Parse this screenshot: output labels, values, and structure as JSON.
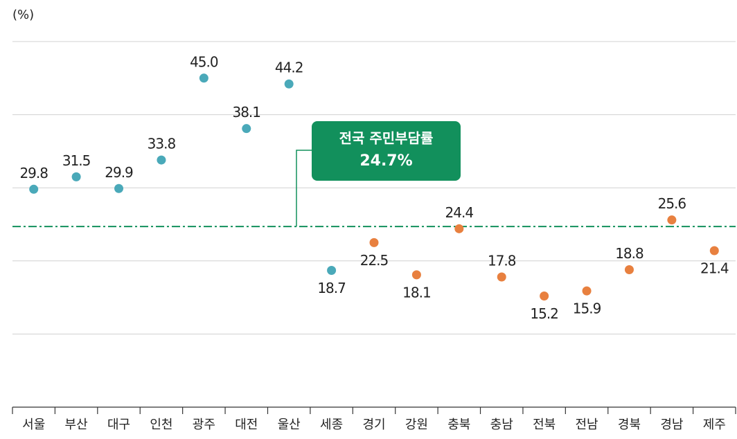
{
  "chart_data": {
    "type": "dot",
    "unit_label": "(%)",
    "categories": [
      "서울",
      "부산",
      "대구",
      "인천",
      "광주",
      "대전",
      "울산",
      "세종",
      "경기",
      "강원",
      "충북",
      "충남",
      "전북",
      "전남",
      "경북",
      "경남",
      "제주"
    ],
    "values": [
      29.8,
      31.5,
      29.9,
      33.8,
      45.0,
      38.1,
      44.2,
      18.7,
      22.5,
      18.1,
      24.4,
      17.8,
      15.2,
      15.9,
      18.8,
      25.6,
      21.4
    ],
    "value_labels": [
      "29.8",
      "31.5",
      "29.9",
      "33.8",
      "45.0",
      "38.1",
      "44.2",
      "18.7",
      "22.5",
      "18.1",
      "24.4",
      "17.8",
      "15.2",
      "15.9",
      "18.8",
      "25.6",
      "21.4"
    ],
    "colors": [
      "#4aa9b9",
      "#4aa9b9",
      "#4aa9b9",
      "#4aa9b9",
      "#4aa9b9",
      "#4aa9b9",
      "#4aa9b9",
      "#4aa9b9",
      "#e8803f",
      "#e8803f",
      "#e8803f",
      "#e8803f",
      "#e8803f",
      "#e8803f",
      "#e8803f",
      "#e8803f",
      "#e8803f"
    ],
    "ylim": [
      0,
      50
    ],
    "yticks": [
      0,
      10,
      20,
      30,
      40,
      50
    ],
    "grid": true,
    "reference": {
      "label": "전국 주민부담률",
      "value": 24.7,
      "value_label": "24.7%",
      "color": "#12905c"
    }
  }
}
